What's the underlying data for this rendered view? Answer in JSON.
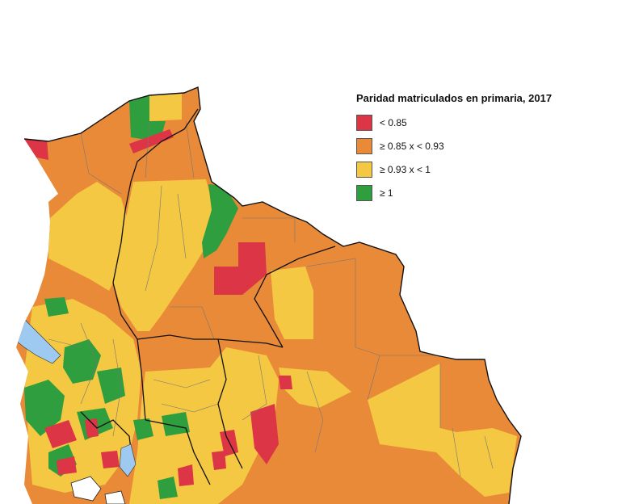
{
  "legend": {
    "title": "Paridad matriculados en primaria, 2017",
    "items": [
      {
        "label": "< 0.85",
        "color": "#dc3545"
      },
      {
        "label": "≥ 0.85 x < 0.93",
        "color": "#e98a38"
      },
      {
        "label": "≥ 0.93 x < 1",
        "color": "#f4c842"
      },
      {
        "label": "≥ 1",
        "color": "#2e9e3e"
      }
    ]
  },
  "colors": {
    "water": "#9ec9f0",
    "border": "#222222",
    "internal_border": "#666666",
    "background": "#ffffff"
  }
}
